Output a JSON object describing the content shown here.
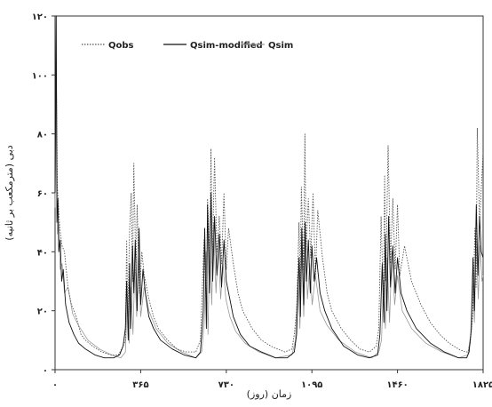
{
  "chart_data": {
    "type": "line",
    "xlabel": "زمان (روز)",
    "ylabel": "دبی (مترمکعب بر ثانیه)",
    "xlim": [
      0,
      1825
    ],
    "ylim": [
      0,
      120
    ],
    "xticks": [
      0,
      365,
      730,
      1095,
      1460,
      1825
    ],
    "xtick_labels": [
      "۰",
      "۳۶۵",
      "۷۳۰",
      "۱۰۹۵",
      "۱۴۶۰",
      "۱۸۲۵"
    ],
    "yticks": [
      0,
      20,
      40,
      60,
      80,
      100,
      120
    ],
    "ytick_labels": [
      "۰",
      "۲۰",
      "۴۰",
      "۶۰",
      "۸۰",
      "۱۰۰",
      "۱۲۰"
    ],
    "grid": false,
    "legend_position": "top-left",
    "series": [
      {
        "name": "Qobs",
        "style": "dotted",
        "color": "#555555",
        "x": [
          0,
          5,
          10,
          15,
          20,
          30,
          40,
          55,
          70,
          90,
          110,
          130,
          160,
          200,
          240,
          270,
          290,
          300,
          305,
          310,
          318,
          325,
          330,
          336,
          345,
          350,
          360,
          370,
          380,
          400,
          420,
          440,
          480,
          520,
          560,
          600,
          620,
          635,
          645,
          650,
          660,
          665,
          670,
          680,
          690,
          700,
          710,
          720,
          730,
          740,
          760,
          780,
          800,
          840,
          880,
          920,
          980,
          1010,
          1020,
          1030,
          1040,
          1045,
          1050,
          1060,
          1065,
          1070,
          1080,
          1090,
          1100,
          1110,
          1120,
          1140,
          1160,
          1180,
          1220,
          1260,
          1300,
          1340,
          1370,
          1380,
          1390,
          1400,
          1405,
          1410,
          1420,
          1430,
          1440,
          1450,
          1460,
          1470,
          1490,
          1520,
          1560,
          1600,
          1640,
          1680,
          1720,
          1750,
          1760,
          1770,
          1780,
          1790,
          1795,
          1800,
          1810,
          1825
        ],
        "y": [
          72,
          105,
          62,
          55,
          48,
          42,
          40,
          28,
          22,
          18,
          12,
          10,
          8,
          6,
          5,
          5,
          8,
          10,
          44,
          18,
          48,
          60,
          30,
          70,
          32,
          56,
          26,
          40,
          32,
          24,
          18,
          14,
          10,
          7,
          6,
          6,
          10,
          44,
          20,
          58,
          38,
          75,
          36,
          72,
          40,
          52,
          36,
          60,
          34,
          48,
          36,
          26,
          20,
          14,
          10,
          8,
          6,
          7,
          12,
          20,
          50,
          26,
          62,
          34,
          80,
          40,
          58,
          38,
          60,
          32,
          54,
          38,
          26,
          20,
          14,
          10,
          7,
          6,
          8,
          14,
          52,
          22,
          66,
          30,
          76,
          36,
          58,
          34,
          56,
          32,
          42,
          30,
          22,
          16,
          12,
          9,
          7,
          6,
          6,
          9,
          18,
          48,
          28,
          82,
          50,
          74
        ]
      },
      {
        "name": "Qsim-modified",
        "style": "solid",
        "color": "#111111",
        "x": [
          0,
          5,
          8,
          12,
          16,
          22,
          28,
          35,
          45,
          60,
          80,
          100,
          130,
          170,
          210,
          250,
          275,
          290,
          300,
          305,
          312,
          318,
          322,
          330,
          336,
          342,
          350,
          358,
          365,
          375,
          385,
          400,
          420,
          450,
          500,
          550,
          600,
          620,
          632,
          638,
          645,
          650,
          658,
          665,
          672,
          680,
          690,
          700,
          710,
          720,
          730,
          745,
          760,
          790,
          830,
          880,
          940,
          990,
          1020,
          1030,
          1040,
          1046,
          1052,
          1060,
          1066,
          1072,
          1080,
          1088,
          1095,
          1105,
          1115,
          1130,
          1150,
          1180,
          1230,
          1290,
          1340,
          1375,
          1385,
          1395,
          1402,
          1408,
          1415,
          1422,
          1430,
          1440,
          1450,
          1460,
          1475,
          1500,
          1540,
          1600,
          1660,
          1720,
          1755,
          1765,
          1775,
          1782,
          1788,
          1796,
          1803,
          1810,
          1817,
          1825
        ],
        "y": [
          60,
          120,
          50,
          58,
          40,
          44,
          30,
          34,
          22,
          16,
          12,
          9,
          7,
          5,
          4,
          4,
          5,
          8,
          14,
          30,
          10,
          36,
          14,
          42,
          26,
          44,
          20,
          48,
          22,
          34,
          26,
          18,
          14,
          10,
          7,
          5,
          4,
          6,
          20,
          48,
          14,
          56,
          26,
          60,
          30,
          52,
          32,
          46,
          28,
          44,
          30,
          24,
          18,
          12,
          8,
          6,
          4,
          4,
          6,
          12,
          38,
          18,
          48,
          22,
          50,
          30,
          44,
          26,
          42,
          30,
          38,
          26,
          20,
          14,
          8,
          5,
          4,
          5,
          12,
          36,
          16,
          46,
          20,
          52,
          28,
          42,
          26,
          38,
          26,
          20,
          14,
          9,
          6,
          4,
          4,
          6,
          14,
          38,
          20,
          56,
          32,
          52,
          40,
          38
        ]
      },
      {
        "name": "Qsim",
        "style": "solid-thin",
        "color": "#999999",
        "x": [
          0,
          6,
          10,
          15,
          22,
          30,
          40,
          55,
          75,
          100,
          140,
          190,
          240,
          280,
          300,
          308,
          316,
          324,
          332,
          340,
          348,
          356,
          365,
          380,
          400,
          430,
          480,
          540,
          600,
          625,
          636,
          644,
          652,
          660,
          668,
          676,
          686,
          696,
          706,
          716,
          728,
          745,
          770,
          810,
          870,
          940,
          1010,
          1025,
          1036,
          1044,
          1052,
          1060,
          1068,
          1076,
          1086,
          1096,
          1110,
          1130,
          1160,
          1210,
          1280,
          1350,
          1380,
          1392,
          1400,
          1408,
          1416,
          1426,
          1436,
          1448,
          1460,
          1480,
          1520,
          1580,
          1650,
          1720,
          1760,
          1772,
          1780,
          1788,
          1796,
          1804,
          1812,
          1820,
          1825
        ],
        "y": [
          55,
          100,
          46,
          50,
          34,
          36,
          26,
          28,
          19,
          15,
          10,
          7,
          5,
          4,
          6,
          24,
          9,
          28,
          12,
          34,
          18,
          40,
          18,
          28,
          20,
          14,
          9,
          6,
          4,
          6,
          16,
          40,
          12,
          44,
          22,
          50,
          26,
          42,
          24,
          36,
          24,
          18,
          13,
          9,
          6,
          4,
          5,
          10,
          32,
          14,
          40,
          18,
          42,
          24,
          36,
          22,
          32,
          20,
          15,
          10,
          6,
          4,
          6,
          10,
          30,
          14,
          38,
          16,
          40,
          22,
          32,
          20,
          14,
          9,
          6,
          4,
          5,
          12,
          32,
          16,
          44,
          24,
          42,
          30,
          32
        ]
      }
    ]
  }
}
